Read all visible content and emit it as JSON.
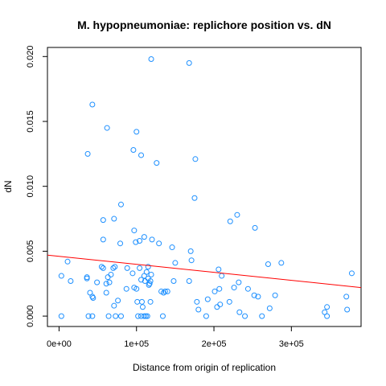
{
  "chart_data": {
    "type": "scatter",
    "title": "M. hypopneumoniae: replichore position vs. dN",
    "xlabel": "Distance from origin of replication",
    "ylabel": "dN",
    "xlim": [
      -15000,
      390000
    ],
    "ylim": [
      -0.0008,
      0.0207
    ],
    "xticks": [
      0,
      100000,
      200000,
      300000
    ],
    "xtick_labels": [
      "0e+00",
      "1e+05",
      "2e+05",
      "3e+05"
    ],
    "yticks": [
      0.0,
      0.005,
      0.01,
      0.015,
      0.02
    ],
    "ytick_labels": [
      "0.000",
      "0.005",
      "0.010",
      "0.015",
      "0.020"
    ],
    "grid": false,
    "legend": "none",
    "point_color": "#1e90ff",
    "line_color": "#ff0000",
    "series": [
      {
        "x": [
          3000,
          11000,
          15000,
          3000,
          36000,
          38000,
          40000,
          43000,
          44000,
          36000,
          43000,
          49000,
          55000,
          57000,
          57000,
          61000,
          61000,
          63000,
          64000,
          65000,
          67000,
          70000,
          71000,
          72000,
          73000,
          76000,
          79000,
          80000,
          87000,
          88000,
          95000,
          97000,
          99000,
          100000,
          101000,
          102000,
          104000,
          106000,
          106000,
          107000,
          108000,
          110000,
          110000,
          111000,
          112000,
          113000,
          114000,
          115000,
          116000,
          117000,
          118000,
          119000,
          97000,
          104000,
          110000,
          120000,
          115000,
          118000,
          129000,
          132000,
          134000,
          135000,
          137000,
          140000,
          146000,
          148000,
          150000,
          168000,
          170000,
          171000,
          175000,
          178000,
          180000,
          190000,
          192000,
          201000,
          204000,
          206000,
          207000,
          208000,
          210000,
          220000,
          221000,
          230000,
          232000,
          240000,
          244000,
          252000,
          257000,
          262000,
          270000,
          272000,
          279000,
          287000,
          343000,
          346000,
          346000,
          371000,
          372000,
          378000,
          37000,
          43000,
          62000,
          57000,
          71000,
          80000,
          96000,
          100000,
          106000,
          126000,
          119000,
          168000,
          176000,
          226000,
          253000,
          233000
        ],
        "y": [
          0.0,
          0.0042,
          0.0027,
          0.0031,
          0.003,
          0.0,
          0.0018,
          0.0,
          0.0014,
          0.0029,
          0.0015,
          0.0026,
          0.0038,
          0.0037,
          0.0059,
          0.0025,
          0.0018,
          0.003,
          0.0,
          0.0026,
          0.0032,
          0.0037,
          0.0008,
          0.0038,
          0.0,
          0.0012,
          0.0056,
          0.0,
          0.0021,
          0.0037,
          0.0033,
          0.0022,
          0.0057,
          0.0021,
          0.0011,
          0.0,
          0.0037,
          0.0028,
          0.0,
          0.0011,
          0.0007,
          0.0031,
          0.0,
          0.0027,
          0.0,
          0.0034,
          0.0,
          0.0029,
          0.0024,
          0.0025,
          0.0011,
          0.0032,
          0.0066,
          0.0058,
          0.0061,
          0.0059,
          0.0038,
          0.0027,
          0.0056,
          0.0019,
          0.0,
          0.0018,
          0.0019,
          0.0019,
          0.0053,
          0.0027,
          0.0041,
          0.0027,
          0.005,
          0.0043,
          0.0091,
          0.0011,
          0.0005,
          0.0,
          0.0013,
          0.0019,
          0.0007,
          0.0036,
          0.0021,
          0.0009,
          0.0031,
          0.0011,
          0.0073,
          0.0078,
          0.0026,
          0.0,
          0.0021,
          0.0016,
          0.0015,
          0.0,
          0.004,
          0.0006,
          0.0016,
          0.0041,
          0.0003,
          0.0,
          0.0007,
          0.0015,
          0.0005,
          0.0033,
          0.0125,
          0.0163,
          0.0145,
          0.0074,
          0.0075,
          0.0086,
          0.0128,
          0.0142,
          0.0124,
          0.0118,
          0.0198,
          0.0195,
          0.0121,
          0.0022,
          0.0068,
          0.0003
        ]
      }
    ],
    "fit_line": {
      "x": [
        -15000,
        390000
      ],
      "y": [
        0.0047,
        0.0022
      ]
    }
  }
}
